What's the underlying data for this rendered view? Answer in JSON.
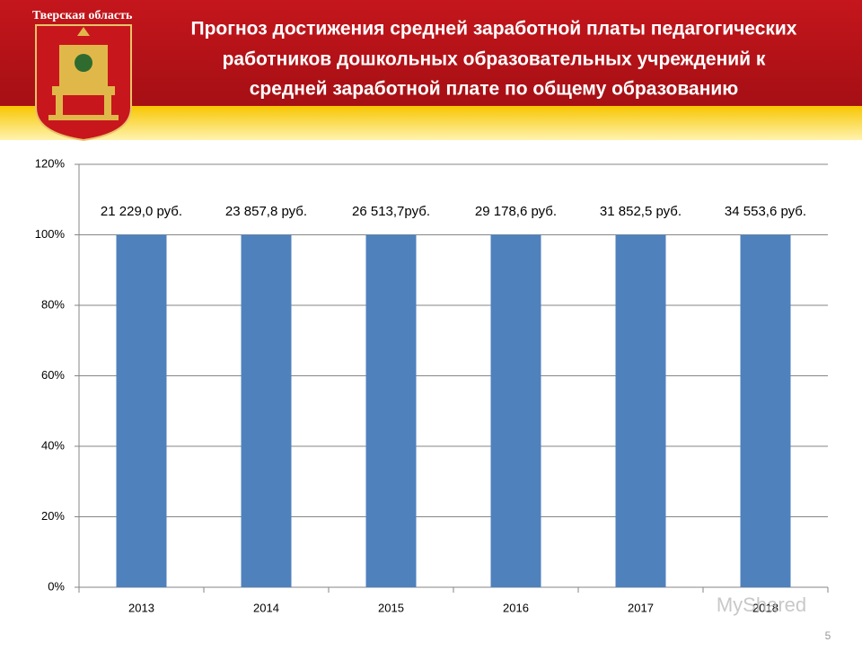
{
  "header": {
    "region": "Тверская область",
    "title_lines": [
      "Прогноз достижения средней заработной платы педагогических",
      "работников дошкольных образовательных учреждений к",
      "средней заработной плате по общему образованию"
    ]
  },
  "chart_data": {
    "type": "bar",
    "categories": [
      "2013",
      "2014",
      "2015",
      "2016",
      "2017",
      "2018"
    ],
    "values": [
      100,
      100,
      100,
      100,
      100,
      100
    ],
    "annotations": [
      "21 229,0 руб.",
      "23 857,8 руб.",
      "26 513,7руб.",
      "29 178,6 руб.",
      "31 852,5 руб.",
      "34 553,6 руб."
    ],
    "color": "#4f81bd",
    "ylim": [
      0,
      120
    ],
    "yticks": [
      {
        "value": 0,
        "label": "0%"
      },
      {
        "value": 20,
        "label": "20%"
      },
      {
        "value": 40,
        "label": "40%"
      },
      {
        "value": 60,
        "label": "60%"
      },
      {
        "value": 80,
        "label": "80%"
      },
      {
        "value": 100,
        "label": "100%"
      },
      {
        "value": 120,
        "label": "120%"
      }
    ],
    "grid": true
  },
  "footer": {
    "page_number": "5",
    "watermark": "MyShared"
  }
}
